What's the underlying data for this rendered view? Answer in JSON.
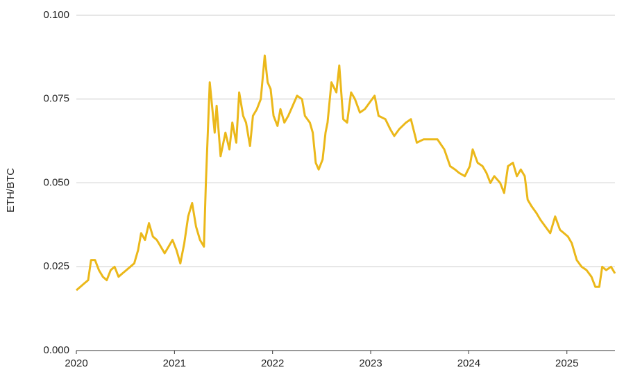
{
  "chart_data": {
    "type": "line",
    "y_label": "ETH/BTC",
    "x": [
      2020.0,
      2020.04,
      2020.08,
      2020.12,
      2020.15,
      2020.19,
      2020.23,
      2020.27,
      2020.31,
      2020.35,
      2020.39,
      2020.43,
      2020.47,
      2020.51,
      2020.55,
      2020.59,
      2020.63,
      2020.66,
      2020.7,
      2020.74,
      2020.78,
      2020.82,
      2020.86,
      2020.9,
      2020.94,
      2020.98,
      2021.02,
      2021.06,
      2021.1,
      2021.14,
      2021.18,
      2021.22,
      2021.26,
      2021.3,
      2021.32,
      2021.34,
      2021.36,
      2021.41,
      2021.43,
      2021.47,
      2021.52,
      2021.56,
      2021.59,
      2021.63,
      2021.66,
      2021.7,
      2021.73,
      2021.77,
      2021.8,
      2021.84,
      2021.88,
      2021.92,
      2021.95,
      2021.98,
      2022.01,
      2022.05,
      2022.08,
      2022.12,
      2022.16,
      2022.19,
      2022.25,
      2022.3,
      2022.33,
      2022.38,
      2022.41,
      2022.44,
      2022.47,
      2022.51,
      2022.54,
      2022.56,
      2022.6,
      2022.65,
      2022.68,
      2022.72,
      2022.76,
      2022.8,
      2022.84,
      2022.89,
      2022.94,
      2022.99,
      2023.04,
      2023.08,
      2023.15,
      2023.2,
      2023.24,
      2023.29,
      2023.36,
      2023.41,
      2023.47,
      2023.54,
      2023.61,
      2023.68,
      2023.75,
      2023.81,
      2023.86,
      2023.9,
      2023.96,
      2024.01,
      2024.04,
      2024.09,
      2024.14,
      2024.18,
      2024.22,
      2024.26,
      2024.32,
      2024.36,
      2024.4,
      2024.45,
      2024.49,
      2024.53,
      2024.57,
      2024.6,
      2024.64,
      2024.69,
      2024.73,
      2024.78,
      2024.83,
      2024.88,
      2024.93,
      2024.97,
      2025.01,
      2025.05,
      2025.1,
      2025.15,
      2025.2,
      2025.25,
      2025.29,
      2025.33,
      2025.36,
      2025.4,
      2025.45,
      2025.49
    ],
    "series": [
      {
        "name": "ETH/BTC",
        "color": "#ebb81a",
        "values": [
          0.018,
          0.019,
          0.02,
          0.021,
          0.027,
          0.027,
          0.024,
          0.022,
          0.021,
          0.024,
          0.025,
          0.022,
          0.023,
          0.024,
          0.025,
          0.026,
          0.03,
          0.035,
          0.033,
          0.038,
          0.034,
          0.033,
          0.031,
          0.029,
          0.031,
          0.033,
          0.03,
          0.026,
          0.032,
          0.04,
          0.044,
          0.037,
          0.033,
          0.031,
          0.05,
          0.065,
          0.08,
          0.065,
          0.073,
          0.058,
          0.065,
          0.06,
          0.068,
          0.062,
          0.077,
          0.07,
          0.068,
          0.061,
          0.07,
          0.072,
          0.075,
          0.088,
          0.08,
          0.078,
          0.07,
          0.067,
          0.072,
          0.068,
          0.07,
          0.072,
          0.076,
          0.075,
          0.07,
          0.068,
          0.065,
          0.056,
          0.054,
          0.057,
          0.065,
          0.068,
          0.08,
          0.077,
          0.085,
          0.069,
          0.068,
          0.077,
          0.075,
          0.071,
          0.072,
          0.074,
          0.076,
          0.07,
          0.069,
          0.066,
          0.064,
          0.066,
          0.068,
          0.069,
          0.062,
          0.063,
          0.063,
          0.063,
          0.06,
          0.055,
          0.054,
          0.053,
          0.052,
          0.055,
          0.06,
          0.056,
          0.055,
          0.053,
          0.05,
          0.052,
          0.05,
          0.047,
          0.055,
          0.056,
          0.052,
          0.054,
          0.052,
          0.045,
          0.043,
          0.041,
          0.039,
          0.037,
          0.035,
          0.04,
          0.036,
          0.035,
          0.034,
          0.032,
          0.027,
          0.025,
          0.024,
          0.022,
          0.019,
          0.019,
          0.025,
          0.024,
          0.025,
          0.023
        ]
      }
    ],
    "xlim": [
      2020,
      2025.49
    ],
    "xticks": [
      2020,
      2021,
      2022,
      2023,
      2024,
      2025
    ],
    "ylim": [
      0,
      0.1
    ],
    "yticks": [
      {
        "value": 0,
        "label": "0.000"
      },
      {
        "value": 0.025,
        "label": "0.025"
      },
      {
        "value": 0.05,
        "label": "0.050"
      },
      {
        "value": 0.075,
        "label": "0.075"
      },
      {
        "value": 0.1,
        "label": "0.100"
      }
    ],
    "grid": true
  }
}
